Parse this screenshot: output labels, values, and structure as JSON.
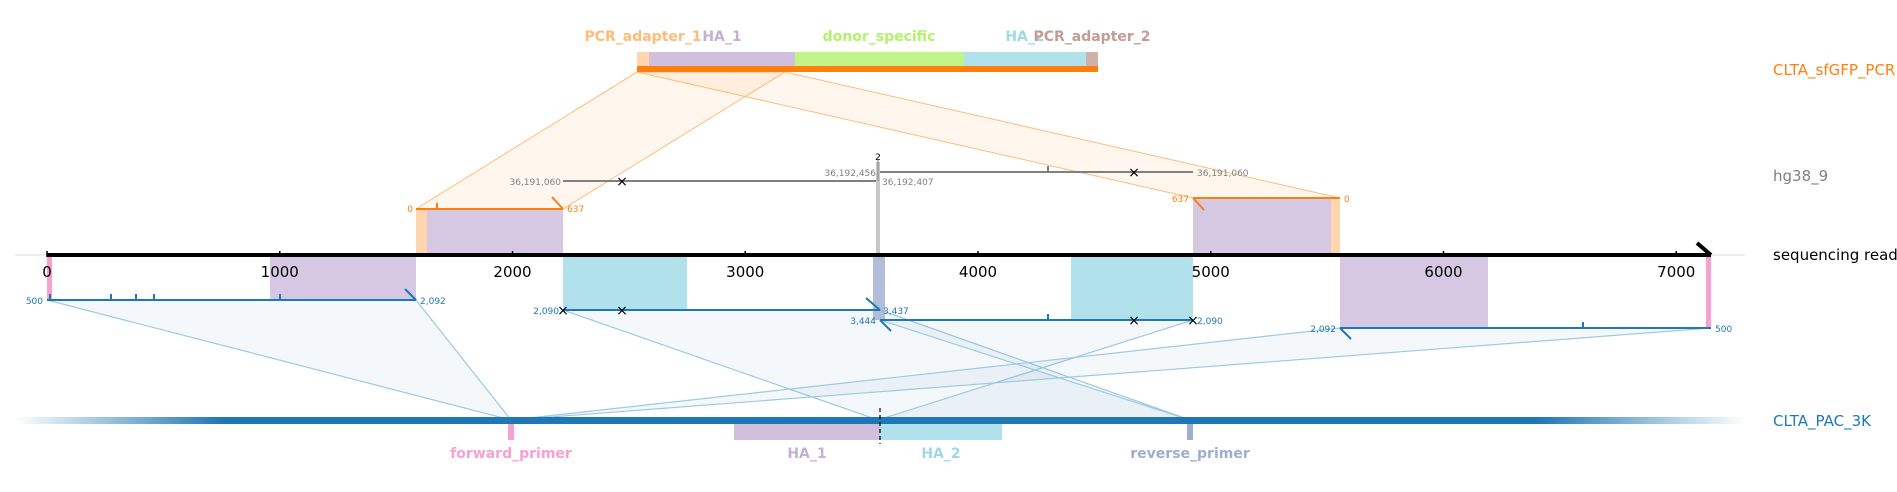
{
  "rows": {
    "pcr": {
      "label": "CLTA_sfGFP_PCR",
      "color": "#ff7f0e"
    },
    "hg": {
      "label": "hg38_9",
      "color": "#808080"
    },
    "read": {
      "label": "sequencing read",
      "color": "#000000"
    },
    "pac": {
      "label": "CLTA_PAC_3K",
      "color": "#1f77b4"
    }
  },
  "pcr_features": [
    {
      "name": "PCR_adapter_1",
      "color": "#ffbb78"
    },
    {
      "name": "HA_1",
      "color": "#c5b0d5"
    },
    {
      "name": "donor_specific",
      "color": "#b1f36b"
    },
    {
      "name": "HA_2",
      "color": "#9edae5"
    },
    {
      "name": "PCR_adapter_2",
      "color": "#c49c94"
    }
  ],
  "pac_features": [
    {
      "name": "forward_primer",
      "color": "#f7a1d1"
    },
    {
      "name": "HA_1",
      "color": "#c5b0d5"
    },
    {
      "name": "HA_2",
      "color": "#9edae5"
    },
    {
      "name": "reverse_primer",
      "color": "#9faecf"
    }
  ],
  "read_axis": {
    "ticks": [
      "0",
      "1000",
      "2000",
      "3000",
      "4000",
      "5000",
      "6000",
      "7000"
    ]
  },
  "alignment_labels": {
    "pcr_left_start": "0",
    "pcr_left_end": "637",
    "pcr_right_start": "637",
    "pcr_right_end": "0",
    "hg_left_start": "36,191,060",
    "hg_mid_left": "36,192,456",
    "hg_mid_right": "36,192,407",
    "hg_right_end": "36,191,060",
    "hg_count": "2",
    "pac_a_start": "500",
    "pac_a_end": "2,092",
    "pac_b_start": "2,090",
    "pac_b_end": "3,437",
    "pac_c_start": "3,444",
    "pac_c_end": "2,090",
    "pac_d_start": "2,092",
    "pac_d_end": "500"
  }
}
